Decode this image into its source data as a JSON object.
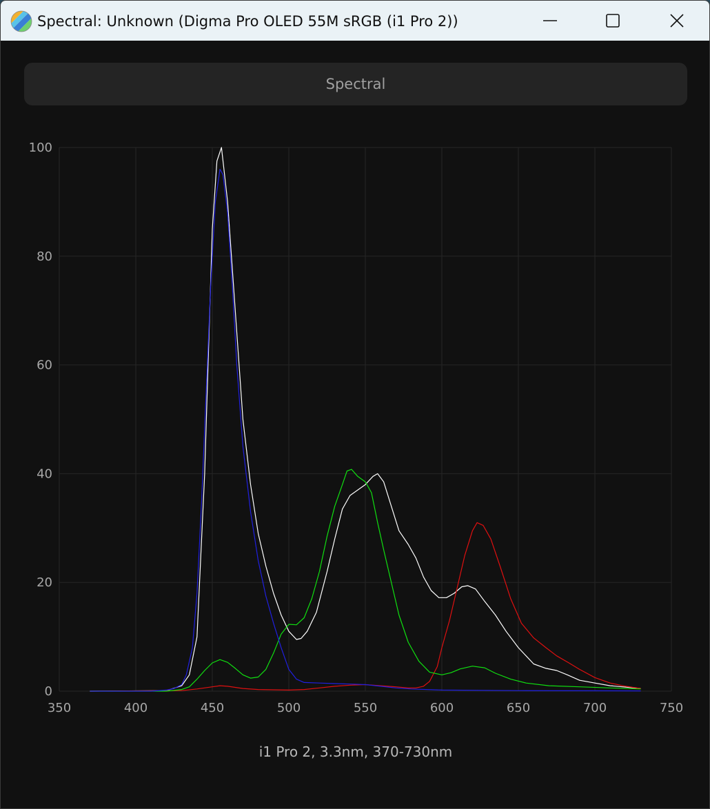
{
  "window": {
    "title": "Spectral: Unknown (Digma Pro OLED 55M sRGB (i1 Pro 2))",
    "controls": [
      "minimize-icon",
      "maximize-icon",
      "close-icon"
    ]
  },
  "tab": {
    "label": "Spectral"
  },
  "footer": {
    "text": "i1 Pro 2, 3.3nm, 370-730nm"
  },
  "colors": {
    "background": "#111111",
    "grid": "#262626",
    "tick_text": "#a8a8a8",
    "white_series": "#ffffff",
    "red_series": "#e01010",
    "green_series": "#10e010",
    "blue_series": "#2020e0"
  },
  "chart_data": {
    "type": "line",
    "title": "",
    "xlabel": "",
    "ylabel": "",
    "xlim": [
      350,
      750
    ],
    "ylim": [
      0,
      100
    ],
    "xticks": [
      350,
      400,
      450,
      500,
      550,
      600,
      650,
      700,
      750
    ],
    "yticks": [
      0,
      20,
      40,
      60,
      80,
      100
    ],
    "grid": true,
    "legend": "none",
    "series": [
      {
        "color": "#ffffff",
        "points": [
          [
            370,
            0
          ],
          [
            420,
            0.1
          ],
          [
            430,
            1
          ],
          [
            435,
            3
          ],
          [
            440,
            10
          ],
          [
            445,
            40
          ],
          [
            450,
            85
          ],
          [
            453,
            97.5
          ],
          [
            456,
            100
          ],
          [
            460,
            90
          ],
          [
            465,
            70
          ],
          [
            470,
            50
          ],
          [
            475,
            38
          ],
          [
            480,
            29
          ],
          [
            485,
            23
          ],
          [
            490,
            18
          ],
          [
            495,
            14
          ],
          [
            500,
            11
          ],
          [
            505,
            9.5
          ],
          [
            508,
            9.7
          ],
          [
            512,
            11
          ],
          [
            518,
            14.5
          ],
          [
            525,
            22
          ],
          [
            530,
            28
          ],
          [
            535,
            33.5
          ],
          [
            540,
            36
          ],
          [
            545,
            37
          ],
          [
            550,
            38
          ],
          [
            555,
            39.5
          ],
          [
            558,
            40
          ],
          [
            562,
            38.5
          ],
          [
            567,
            34
          ],
          [
            572,
            29.5
          ],
          [
            578,
            27
          ],
          [
            583,
            24.5
          ],
          [
            588,
            21
          ],
          [
            593,
            18.5
          ],
          [
            598,
            17.2
          ],
          [
            603,
            17.2
          ],
          [
            608,
            18
          ],
          [
            613,
            19.2
          ],
          [
            617,
            19.4
          ],
          [
            622,
            18.8
          ],
          [
            628,
            16.5
          ],
          [
            635,
            14
          ],
          [
            642,
            11
          ],
          [
            650,
            8
          ],
          [
            655,
            6.5
          ],
          [
            660,
            5
          ],
          [
            668,
            4.2
          ],
          [
            675,
            3.8
          ],
          [
            682,
            3
          ],
          [
            690,
            2
          ],
          [
            700,
            1.5
          ],
          [
            710,
            1
          ],
          [
            730,
            0.5
          ]
        ]
      },
      {
        "color": "#e01010",
        "points": [
          [
            370,
            0
          ],
          [
            430,
            0.1
          ],
          [
            440,
            0.4
          ],
          [
            450,
            0.8
          ],
          [
            455,
            1
          ],
          [
            460,
            0.9
          ],
          [
            470,
            0.5
          ],
          [
            480,
            0.3
          ],
          [
            500,
            0.2
          ],
          [
            510,
            0.3
          ],
          [
            520,
            0.6
          ],
          [
            530,
            0.9
          ],
          [
            540,
            1.1
          ],
          [
            550,
            1.2
          ],
          [
            560,
            1
          ],
          [
            570,
            0.8
          ],
          [
            578,
            0.6
          ],
          [
            583,
            0.6
          ],
          [
            588,
            0.9
          ],
          [
            592,
            1.8
          ],
          [
            597,
            4.5
          ],
          [
            600,
            8
          ],
          [
            605,
            13
          ],
          [
            610,
            19
          ],
          [
            615,
            25
          ],
          [
            620,
            29.5
          ],
          [
            623,
            31
          ],
          [
            627,
            30.5
          ],
          [
            632,
            28
          ],
          [
            638,
            23
          ],
          [
            645,
            17
          ],
          [
            652,
            12.5
          ],
          [
            660,
            9.8
          ],
          [
            668,
            8
          ],
          [
            675,
            6.5
          ],
          [
            683,
            5.2
          ],
          [
            690,
            4
          ],
          [
            700,
            2.5
          ],
          [
            710,
            1.5
          ],
          [
            720,
            0.9
          ],
          [
            730,
            0.5
          ]
        ]
      },
      {
        "color": "#10e010",
        "points": [
          [
            370,
            0
          ],
          [
            420,
            0
          ],
          [
            430,
            0.3
          ],
          [
            435,
            0.8
          ],
          [
            440,
            2.2
          ],
          [
            445,
            3.8
          ],
          [
            450,
            5.2
          ],
          [
            455,
            5.8
          ],
          [
            460,
            5.3
          ],
          [
            465,
            4.2
          ],
          [
            470,
            3
          ],
          [
            475,
            2.4
          ],
          [
            480,
            2.6
          ],
          [
            485,
            4
          ],
          [
            490,
            7
          ],
          [
            495,
            10.5
          ],
          [
            500,
            12.3
          ],
          [
            505,
            12.2
          ],
          [
            510,
            13.5
          ],
          [
            515,
            17
          ],
          [
            520,
            22
          ],
          [
            525,
            28.5
          ],
          [
            530,
            34
          ],
          [
            535,
            38
          ],
          [
            538,
            40.5
          ],
          [
            541,
            40.8
          ],
          [
            545,
            39.5
          ],
          [
            550,
            38.5
          ],
          [
            554,
            36.5
          ],
          [
            558,
            31
          ],
          [
            562,
            26
          ],
          [
            567,
            20
          ],
          [
            572,
            14
          ],
          [
            578,
            9
          ],
          [
            585,
            5.5
          ],
          [
            592,
            3.5
          ],
          [
            600,
            3
          ],
          [
            606,
            3.4
          ],
          [
            612,
            4.1
          ],
          [
            620,
            4.6
          ],
          [
            628,
            4.3
          ],
          [
            635,
            3.3
          ],
          [
            645,
            2.2
          ],
          [
            655,
            1.5
          ],
          [
            670,
            1
          ],
          [
            690,
            0.8
          ],
          [
            710,
            0.6
          ],
          [
            730,
            0.4
          ]
        ]
      },
      {
        "color": "#2020e0",
        "points": [
          [
            370,
            0
          ],
          [
            410,
            0
          ],
          [
            420,
            0.2
          ],
          [
            425,
            0.5
          ],
          [
            430,
            1.2
          ],
          [
            433,
            3
          ],
          [
            437,
            8
          ],
          [
            440,
            18
          ],
          [
            443,
            35
          ],
          [
            446,
            55
          ],
          [
            449,
            75
          ],
          [
            452,
            90
          ],
          [
            455,
            96
          ],
          [
            457,
            95
          ],
          [
            460,
            88
          ],
          [
            463,
            75
          ],
          [
            466,
            60
          ],
          [
            470,
            45
          ],
          [
            475,
            33
          ],
          [
            480,
            24
          ],
          [
            485,
            17.5
          ],
          [
            490,
            12.5
          ],
          [
            495,
            8
          ],
          [
            500,
            4
          ],
          [
            505,
            2.2
          ],
          [
            510,
            1.6
          ],
          [
            520,
            1.5
          ],
          [
            530,
            1.4
          ],
          [
            540,
            1.3
          ],
          [
            550,
            1.2
          ],
          [
            560,
            0.9
          ],
          [
            570,
            0.6
          ],
          [
            580,
            0.4
          ],
          [
            600,
            0.2
          ],
          [
            650,
            0.1
          ],
          [
            730,
            0.05
          ]
        ]
      }
    ]
  }
}
